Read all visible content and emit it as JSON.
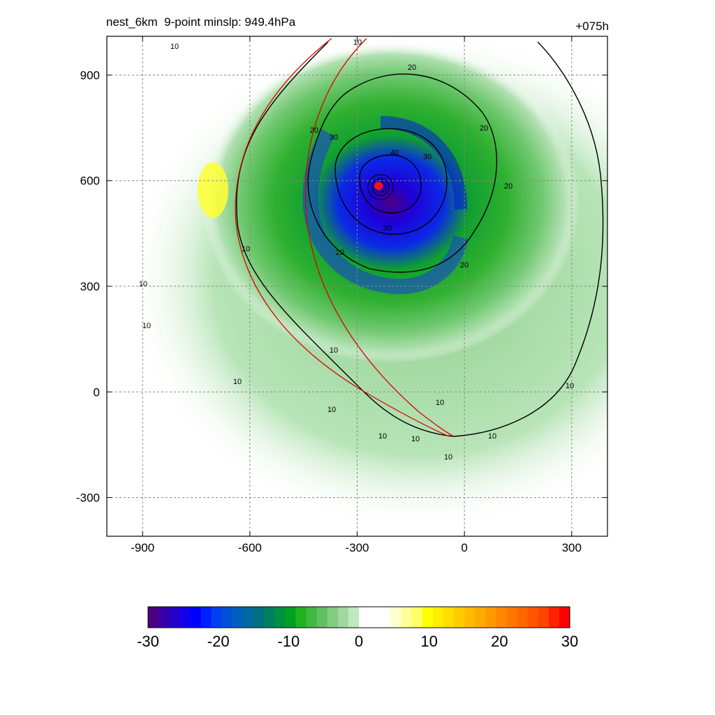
{
  "title_left": "nest_6km  9-point minslp: 949.4hPa",
  "title_right": "+075h",
  "chart_data": {
    "type": "heatmap",
    "x_range": [
      -1000,
      400
    ],
    "y_range": [
      -410,
      1010
    ],
    "x_ticks": [
      -900,
      -600,
      -300,
      0,
      300
    ],
    "y_ticks": [
      900,
      600,
      300,
      0,
      -300
    ],
    "grid": true,
    "storm_center": [
      -240,
      585
    ],
    "contour_levels": [
      10,
      20,
      30,
      40
    ],
    "contour_labels": [
      "10",
      "20",
      "30",
      "40"
    ],
    "colorbar": {
      "range": [
        -30,
        30
      ],
      "tick_values": [
        -30,
        -20,
        -10,
        0,
        10,
        20,
        30
      ],
      "tick_labels": [
        "-30",
        "-20",
        "-10",
        "0",
        "10",
        "20",
        "30"
      ],
      "colors": [
        "#4b0082",
        "#3a00a8",
        "#2800cc",
        "#1400e8",
        "#0000ff",
        "#0020ff",
        "#0040f0",
        "#0050d8",
        "#0060c0",
        "#006aa0",
        "#007080",
        "#008060",
        "#009040",
        "#00a020",
        "#20b020",
        "#40b840",
        "#60c060",
        "#80cc80",
        "#a0d8a0",
        "#c0e8c0",
        "#ffffff",
        "#ffffff",
        "#ffffff",
        "#ffffcc",
        "#ffff99",
        "#ffff66",
        "#ffff00",
        "#ffee00",
        "#ffdd00",
        "#ffcc00",
        "#ffbb00",
        "#ffaa00",
        "#ff9900",
        "#ff8800",
        "#ff7700",
        "#ff6600",
        "#ff5500",
        "#ff4400",
        "#ff2200",
        "#ff0000"
      ]
    }
  }
}
